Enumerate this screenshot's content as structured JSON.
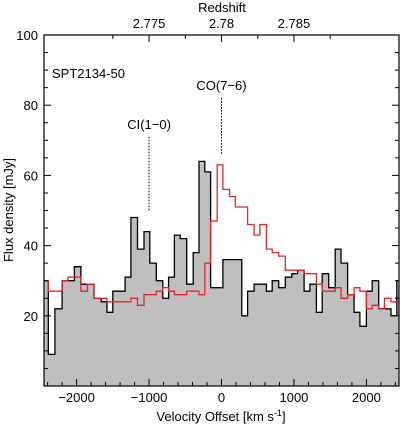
{
  "chart_data": {
    "type": "line",
    "title": "",
    "source_label": "SPT2134-50",
    "xlabel": "Velocity Offset [km s",
    "xlabel_sup": "-1",
    "xlabel_end": "]",
    "ylabel": "Flux density [mJy]",
    "top_axis_label": "Redshift",
    "xlim": [
      -2450,
      2450
    ],
    "ylim": [
      0,
      100
    ],
    "x_ticks": [
      -2000,
      -1000,
      0,
      1000,
      2000
    ],
    "y_ticks": [
      20,
      40,
      60,
      80,
      100
    ],
    "top_ticks": [
      {
        "label": "2.775",
        "velocity": -1000
      },
      {
        "label": "2.78",
        "velocity": 0
      },
      {
        "label": "2.785",
        "velocity": 1000
      }
    ],
    "line_markers": [
      {
        "label": "CI(1−0)",
        "velocity": -1000,
        "y_top": 71,
        "y_bottom": 50
      },
      {
        "label": "CO(7−6)",
        "velocity": 0,
        "y_top": 82,
        "y_bottom": 66
      }
    ],
    "series": [
      {
        "style": "filled-step",
        "color": "#bfbfbf",
        "edge": "#000000",
        "x": [
          -2450,
          -2390,
          -2300,
          -2200,
          -2120,
          -2030,
          -1940,
          -1850,
          -1760,
          -1660,
          -1580,
          -1500,
          -1420,
          -1330,
          -1250,
          -1160,
          -1070,
          -990,
          -900,
          -810,
          -730,
          -650,
          -570,
          -480,
          -390,
          -310,
          -230,
          -150,
          -60,
          20,
          110,
          190,
          280,
          360,
          450,
          530,
          620,
          700,
          790,
          880,
          970,
          1050,
          1140,
          1220,
          1310,
          1390,
          1480,
          1570,
          1650,
          1740,
          1830,
          1910,
          2000,
          2080,
          2170,
          2250,
          2340,
          2420
        ],
        "y": [
          30,
          9,
          22,
          30,
          30,
          34,
          29,
          29,
          25,
          24,
          21,
          27,
          27,
          31,
          48,
          39,
          44,
          35,
          30,
          25,
          31,
          43,
          42,
          29,
          38,
          64,
          61,
          28,
          28,
          36,
          36,
          36,
          20,
          27,
          29,
          29,
          27,
          30,
          28,
          31,
          32,
          33,
          27,
          29,
          21,
          32,
          28,
          39,
          35,
          26,
          21,
          17,
          27,
          30,
          22,
          22,
          20,
          30
        ]
      },
      {
        "style": "step",
        "color": "#e1252b",
        "x": [
          -2450,
          -2390,
          -2300,
          -2200,
          -2120,
          -2030,
          -1940,
          -1850,
          -1760,
          -1660,
          -1580,
          -1500,
          -1420,
          -1330,
          -1250,
          -1160,
          -1070,
          -990,
          -900,
          -810,
          -730,
          -650,
          -570,
          -480,
          -390,
          -310,
          -230,
          -150,
          -60,
          20,
          110,
          190,
          280,
          360,
          450,
          530,
          620,
          700,
          790,
          880,
          970,
          1050,
          1140,
          1220,
          1310,
          1390,
          1480,
          1570,
          1650,
          1740,
          1830,
          1910,
          2000,
          2080,
          2170,
          2250,
          2340,
          2420
        ],
        "y": [
          30,
          27,
          27,
          30,
          31,
          31,
          27,
          29,
          25,
          25,
          24,
          24,
          24,
          24,
          25,
          23,
          26,
          26,
          27,
          28,
          27,
          26,
          26,
          27,
          27,
          26,
          35,
          47,
          63,
          56,
          54,
          51,
          51,
          46,
          43,
          46,
          39,
          38,
          37,
          33,
          33,
          33,
          32,
          32,
          29,
          27,
          27,
          28,
          25,
          26,
          28,
          27,
          22,
          23,
          22,
          25,
          24,
          24
        ]
      }
    ]
  }
}
